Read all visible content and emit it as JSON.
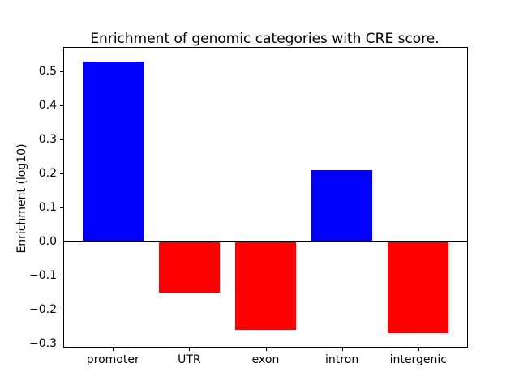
{
  "chart_data": {
    "type": "bar",
    "title": "Enrichment of genomic categories with CRE score.",
    "xlabel": "",
    "ylabel": "Enrichment (log10)",
    "categories": [
      "promoter",
      "UTR",
      "exon",
      "intron",
      "intergenic"
    ],
    "values": [
      0.53,
      -0.15,
      -0.26,
      0.21,
      -0.27
    ],
    "bar_colors": [
      "#0000ff",
      "#ff0000",
      "#ff0000",
      "#0000ff",
      "#ff0000"
    ],
    "positive_color": "#0000ff",
    "negative_color": "#ff0000",
    "ylim": [
      -0.31,
      0.57
    ],
    "xlim": [
      -0.64,
      4.64
    ],
    "yticks": [
      0.5,
      0.4,
      0.3,
      0.2,
      0.1,
      0.0,
      -0.1,
      -0.2,
      -0.3
    ],
    "ytick_labels": [
      "0.5",
      "0.4",
      "0.3",
      "0.2",
      "0.1",
      "0.0",
      "−0.1",
      "−0.2",
      "−0.3"
    ],
    "bar_width_fraction": 0.8,
    "grid": false,
    "zero_line": true,
    "legend": "none",
    "background_color": "#ffffff",
    "axis_color": "#000000"
  }
}
